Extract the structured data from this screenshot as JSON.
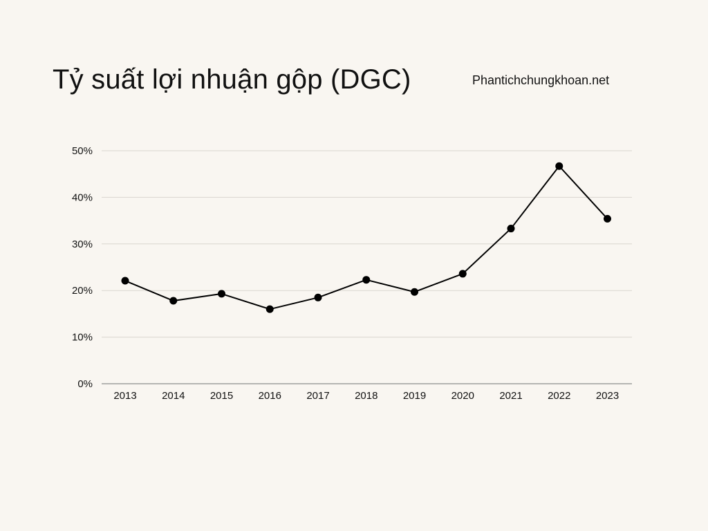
{
  "title": "Tỷ suất lợi nhuận gộp (DGC)",
  "source": "Phantichchungkhoan.net",
  "chart_data": {
    "type": "line",
    "title": "Tỷ suất lợi nhuận gộp (DGC)",
    "xlabel": "",
    "ylabel": "",
    "categories": [
      "2013",
      "2014",
      "2015",
      "2016",
      "2017",
      "2018",
      "2019",
      "2020",
      "2021",
      "2022",
      "2023"
    ],
    "series": [
      {
        "values": [
          22.1,
          17.8,
          19.3,
          16.0,
          18.5,
          22.3,
          19.7,
          23.6,
          33.3,
          46.7,
          35.4
        ],
        "color": "#000000"
      }
    ],
    "ylim": [
      0,
      50
    ],
    "yticks": [
      0,
      10,
      20,
      30,
      40,
      50
    ],
    "ytick_labels": [
      "0%",
      "10%",
      "20%",
      "30%",
      "40%",
      "50%"
    ],
    "grid": true,
    "legend": "none",
    "colors": {
      "background": "#f9f6f1",
      "gridline": "#d9d5cf",
      "axis": "#8c8c8c",
      "line": "#000000"
    }
  }
}
